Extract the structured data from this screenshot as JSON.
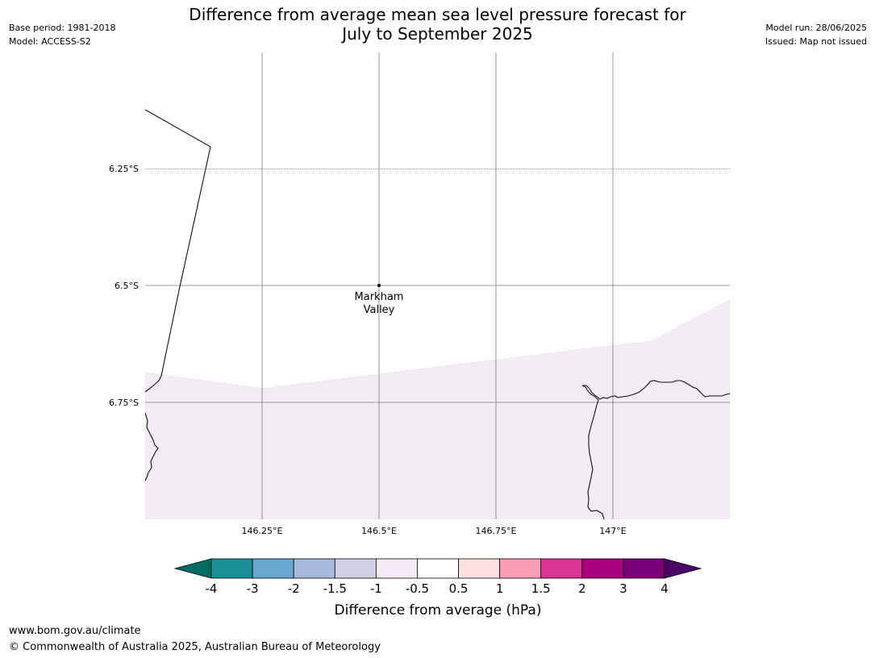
{
  "title": {
    "line1": "Difference from average mean sea level pressure forecast for",
    "line2": "July to September 2025"
  },
  "meta_left": [
    "Base period: 1981-2018",
    "Model: ACCESS-S2"
  ],
  "meta_right": [
    "Model run: 28/06/2025",
    "Issued: Map not issued"
  ],
  "map": {
    "lon_ticks": [
      "146.25°E",
      "146.5°E",
      "146.75°E",
      "147°E"
    ],
    "lat_ticks": [
      "6.25°S",
      "6.5°S",
      "6.75°S"
    ],
    "place": {
      "name_line1": "Markham",
      "name_line2": "Valley"
    },
    "anomaly_fill_color": "#f4ecf5",
    "anomaly_band": "-0.5 to -1"
  },
  "colorbar": {
    "label": "Difference from average (hPa)",
    "ticks": [
      "-4",
      "-3",
      "-2",
      "-1.5",
      "-1",
      "-0.5",
      "0.5",
      "1",
      "1.5",
      "2",
      "3",
      "4"
    ],
    "colors": [
      "#006b60",
      "#1b9096",
      "#68a8d0",
      "#a6badb",
      "#d1d1e5",
      "#f6ecf7",
      "#ffffff",
      "#ffdfe0",
      "#f99eb5",
      "#da3494",
      "#ab007d",
      "#7a0078",
      "#4b0067"
    ]
  },
  "footer": {
    "url": "www.bom.gov.au/climate",
    "copyright": "© Commonwealth of Australia 2025, Australian Bureau of Meteorology"
  }
}
